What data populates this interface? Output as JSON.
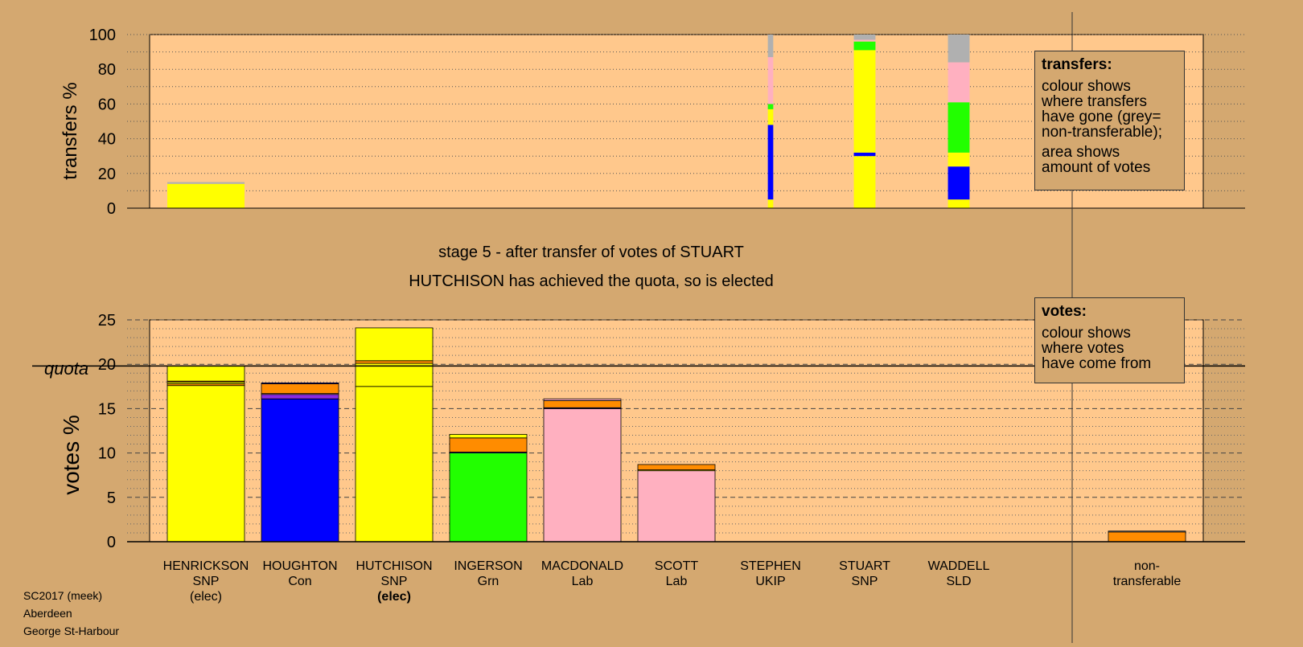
{
  "captions": {
    "stage_line": "stage 5 - after transfer of votes of STUART",
    "elected_line": "HUTCHISON has achieved the quota, so is elected"
  },
  "legends": {
    "transfers": {
      "title": "transfers:",
      "para1": [
        "colour shows",
        "where transfers",
        "have gone (grey=",
        "non-transferable);"
      ],
      "para2": [
        "area shows",
        "amount of votes"
      ]
    },
    "votes": {
      "title": "votes:",
      "para1": [
        "colour shows",
        "where votes",
        "have come from"
      ]
    }
  },
  "footer": [
    "SC2017 (meek)",
    "Aberdeen",
    "George St-Harbour"
  ],
  "colors": {
    "background": "#d4a870",
    "plot_bg": "#ffc88c",
    "snp": "#ffff00",
    "con": "#0000ff",
    "grn": "#22ff00",
    "lab": "#ffb0c0",
    "ukip": "#8a2be2",
    "ld": "#ff8c00",
    "nontransferable": "#b0b0b0"
  },
  "chart_data": [
    {
      "type": "bar",
      "ylabel": "transfers %",
      "ylim": [
        0,
        100
      ],
      "yticks": [
        0,
        20,
        40,
        60,
        80,
        100
      ],
      "grid": true,
      "stacked": true,
      "bars": [
        {
          "candidate": "HENRICKSON",
          "width": 1.0,
          "segments": [
            {
              "party": "snp",
              "value": 14
            },
            {
              "party": "nontransferable",
              "value": 1
            }
          ]
        },
        {
          "candidate": "STEPHEN",
          "width": 0.07,
          "segments": [
            {
              "party": "snp",
              "value": 5
            },
            {
              "party": "con",
              "value": 43
            },
            {
              "party": "snp",
              "value": 9
            },
            {
              "party": "grn",
              "value": 3
            },
            {
              "party": "lab",
              "value": 27
            },
            {
              "party": "nontransferable",
              "value": 13
            }
          ]
        },
        {
          "candidate": "STUART",
          "width": 0.28,
          "segments": [
            {
              "party": "snp",
              "value": 30
            },
            {
              "party": "con",
              "value": 2
            },
            {
              "party": "snp",
              "value": 59
            },
            {
              "party": "grn",
              "value": 5
            },
            {
              "party": "lab",
              "value": 1
            },
            {
              "party": "nontransferable",
              "value": 3
            }
          ]
        },
        {
          "candidate": "WADDELL",
          "width": 0.28,
          "segments": [
            {
              "party": "snp",
              "value": 5
            },
            {
              "party": "con",
              "value": 19
            },
            {
              "party": "snp",
              "value": 8
            },
            {
              "party": "grn",
              "value": 29
            },
            {
              "party": "lab",
              "value": 23
            },
            {
              "party": "nontransferable",
              "value": 16
            }
          ]
        }
      ]
    },
    {
      "type": "bar",
      "ylabel": "votes %",
      "ylim": [
        0,
        25
      ],
      "yticks": [
        0,
        5,
        10,
        15,
        20,
        25
      ],
      "quota": 19.8,
      "quota_label": "quota",
      "grid": true,
      "stacked": true,
      "categories": [
        {
          "name": "HENRICKSON",
          "party": "SNP",
          "note": "(elec)",
          "note_bold": false
        },
        {
          "name": "HOUGHTON",
          "party": "Con",
          "note": "",
          "note_bold": false
        },
        {
          "name": "HUTCHISON",
          "party": "SNP",
          "note": "(elec)",
          "note_bold": true
        },
        {
          "name": "INGERSON",
          "party": "Grn",
          "note": "",
          "note_bold": false
        },
        {
          "name": "MACDONALD",
          "party": "Lab",
          "note": "",
          "note_bold": false
        },
        {
          "name": "SCOTT",
          "party": "Lab",
          "note": "",
          "note_bold": false
        },
        {
          "name": "STEPHEN",
          "party": "UKIP",
          "note": "",
          "note_bold": false
        },
        {
          "name": "STUART",
          "party": "SNP",
          "note": "",
          "note_bold": false
        },
        {
          "name": "WADDELL",
          "party": "SLD",
          "note": "",
          "note_bold": false
        }
      ],
      "nontransferable_label": [
        "non-",
        "transferable"
      ],
      "stacks": [
        [
          {
            "party": "snp",
            "value": 17.6
          },
          {
            "party": "ld",
            "value": 0.2
          },
          {
            "party": "snp",
            "value": 0.2
          },
          {
            "party": "ld",
            "value": 0.1
          },
          {
            "party": "snp",
            "value": 1.7
          }
        ],
        [
          {
            "party": "con",
            "value": 16.1
          },
          {
            "party": "ukip",
            "value": 0.5
          },
          {
            "party": "lab",
            "value": 0.1
          },
          {
            "party": "ld",
            "value": 1.1
          },
          {
            "party": "con",
            "value": 0.1
          }
        ],
        [
          {
            "party": "snp",
            "value": 17.5
          },
          {
            "party": "snp",
            "value": 2.6
          },
          {
            "party": "ld",
            "value": 0.3
          },
          {
            "party": "snp",
            "value": 3.7
          }
        ],
        [
          {
            "party": "grn",
            "value": 10.0
          },
          {
            "party": "con",
            "value": 0.1
          },
          {
            "party": "ld",
            "value": 1.6
          },
          {
            "party": "snp",
            "value": 0.4
          }
        ],
        [
          {
            "party": "lab",
            "value": 15.0
          },
          {
            "party": "con",
            "value": 0.1
          },
          {
            "party": "ld",
            "value": 0.8
          },
          {
            "party": "lab",
            "value": 0.2
          }
        ],
        [
          {
            "party": "lab",
            "value": 8.0
          },
          {
            "party": "snp",
            "value": 0.1
          },
          {
            "party": "ld",
            "value": 0.6
          }
        ],
        [],
        [],
        []
      ],
      "nontransferable_stack": [
        {
          "party": "ld",
          "value": 1.1
        },
        {
          "party": "nontransferable",
          "value": 0.1
        }
      ]
    }
  ]
}
